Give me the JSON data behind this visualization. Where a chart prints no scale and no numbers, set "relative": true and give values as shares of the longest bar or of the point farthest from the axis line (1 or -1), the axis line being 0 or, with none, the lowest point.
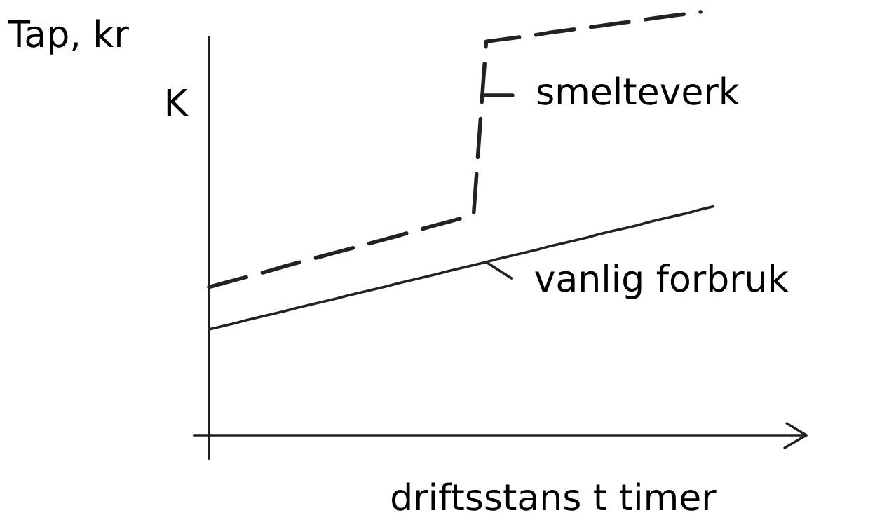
{
  "chart_data": {
    "type": "line",
    "relative": true,
    "ylabel": "Tap, kr",
    "xlabel": "driftsstans t timer",
    "annotations": [
      "K"
    ],
    "legend": "right",
    "categories": [
      null,
      null,
      null,
      null,
      null,
      null,
      null,
      null,
      null,
      null,
      null,
      null,
      null,
      null,
      null,
      null,
      null,
      null,
      null,
      null,
      null,
      null,
      null,
      null,
      null,
      null,
      null,
      null,
      null,
      null,
      null,
      null,
      null,
      null,
      null,
      null,
      null,
      null,
      null,
      null,
      null
    ],
    "series": [
      {
        "name": "smelteverk",
        "color": "#222222",
        "line_style": "dashed",
        "values": [
          0.35,
          0.358,
          0.366,
          0.374,
          0.382,
          0.39,
          0.399,
          0.407,
          0.415,
          0.423,
          0.431,
          0.439,
          0.447,
          0.455,
          0.463,
          0.471,
          0.48,
          0.488,
          0.496,
          0.504,
          0.512,
          0.52,
          0.93,
          0.934,
          0.938,
          0.942,
          0.946,
          0.951,
          0.955,
          0.959,
          0.963,
          0.967,
          0.971,
          0.975,
          0.979,
          0.984,
          0.988,
          0.992,
          0.996,
          1.0,
          null
        ]
      },
      {
        "name": "vanlig forbruk",
        "color": "#222222",
        "line_style": "solid",
        "values": [
          0.25,
          0.257,
          0.264,
          0.272,
          0.279,
          0.286,
          0.293,
          0.301,
          0.308,
          0.315,
          0.322,
          0.33,
          0.337,
          0.344,
          0.351,
          0.359,
          0.366,
          0.373,
          0.38,
          0.388,
          0.395,
          0.402,
          0.409,
          0.417,
          0.424,
          0.431,
          0.438,
          0.446,
          0.453,
          0.46,
          0.467,
          0.475,
          0.482,
          0.489,
          0.496,
          0.504,
          0.511,
          0.518,
          0.525,
          0.533,
          0.54
        ]
      }
    ]
  }
}
